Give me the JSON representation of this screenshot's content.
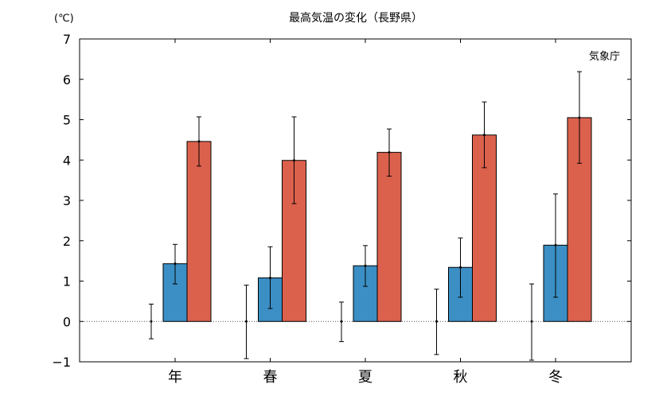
{
  "chart_data": {
    "type": "bar",
    "title": "最高気温の変化（長野県）",
    "unit_label": "(℃)",
    "source_label": "気象庁",
    "categories": [
      "年",
      "春",
      "夏",
      "秋",
      "冬"
    ],
    "ylim": [
      -1,
      7
    ],
    "yticks": [
      -1,
      0,
      1,
      2,
      3,
      4,
      5,
      6,
      7
    ],
    "ytick_labels": [
      "−1",
      "0",
      "1",
      "2",
      "3",
      "4",
      "5",
      "6",
      "7"
    ],
    "grid": false,
    "zero_line": "dotted",
    "reference_error_bars": [
      {
        "low": -0.43,
        "high": 0.43
      },
      {
        "low": -0.92,
        "high": 0.9
      },
      {
        "low": -0.5,
        "high": 0.48
      },
      {
        "low": -0.82,
        "high": 0.8
      },
      {
        "low": -0.96,
        "high": 0.93
      }
    ],
    "series": [
      {
        "color": "#3b8fc4",
        "values": [
          1.43,
          1.08,
          1.38,
          1.34,
          1.89
        ],
        "error_low": [
          0.93,
          0.32,
          0.87,
          0.6,
          0.6
        ],
        "error_high": [
          1.91,
          1.85,
          1.88,
          2.07,
          3.16
        ]
      },
      {
        "color": "#dc614d",
        "values": [
          4.46,
          3.99,
          4.19,
          4.62,
          5.05
        ],
        "error_low": [
          3.85,
          2.92,
          3.6,
          3.81,
          3.92
        ],
        "error_high": [
          5.07,
          5.07,
          4.77,
          5.44,
          6.19
        ]
      }
    ]
  }
}
